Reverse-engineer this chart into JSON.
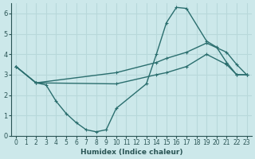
{
  "xlabel": "Humidex (Indice chaleur)",
  "background_color": "#cce8ea",
  "grid_color": "#b8d8da",
  "line_color": "#2a6e6e",
  "xlim": [
    -0.5,
    23.5
  ],
  "ylim": [
    0,
    6.5
  ],
  "xticks": [
    0,
    1,
    2,
    3,
    4,
    5,
    6,
    7,
    8,
    9,
    10,
    11,
    12,
    13,
    14,
    15,
    16,
    17,
    18,
    19,
    20,
    21,
    22,
    23
  ],
  "yticks": [
    0,
    1,
    2,
    3,
    4,
    5,
    6
  ],
  "line1_x": [
    0,
    2,
    3,
    4,
    5,
    6,
    7,
    8,
    9,
    10,
    13,
    14,
    15,
    16,
    17,
    19,
    20,
    21,
    22,
    23
  ],
  "line1_y": [
    3.4,
    2.6,
    2.5,
    1.7,
    1.1,
    0.65,
    0.3,
    0.2,
    0.3,
    1.35,
    2.55,
    4.0,
    5.55,
    6.3,
    6.25,
    4.65,
    4.35,
    3.6,
    3.0,
    3.0
  ],
  "line2_x": [
    0,
    2,
    10,
    14,
    15,
    17,
    19,
    21,
    22,
    23
  ],
  "line2_y": [
    3.4,
    2.6,
    3.1,
    3.6,
    3.8,
    4.1,
    4.55,
    4.1,
    3.5,
    3.0
  ],
  "line3_x": [
    0,
    2,
    10,
    14,
    15,
    17,
    19,
    21,
    22,
    23
  ],
  "line3_y": [
    3.4,
    2.6,
    2.55,
    3.0,
    3.1,
    3.4,
    4.0,
    3.5,
    3.0,
    3.0
  ]
}
